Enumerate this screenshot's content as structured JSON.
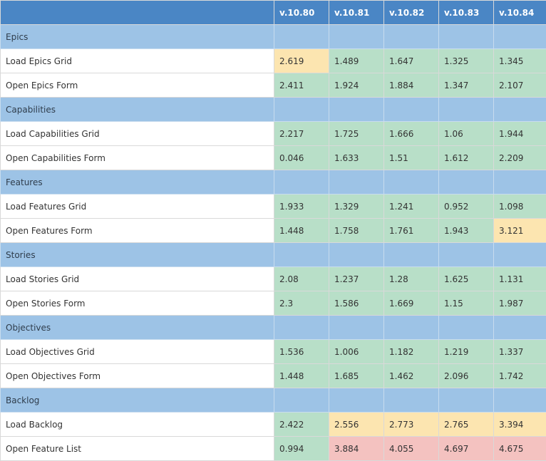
{
  "columns": [
    "v.10.80",
    "v.10.81",
    "v.10.82",
    "v.10.83",
    "v.10.84"
  ],
  "status_colors": {
    "green": "#b8dfc8",
    "yellow": "#fce5b0",
    "red": "#f4c2c0",
    "header": "#4a86c5",
    "group": "#9dc3e6"
  },
  "groups": [
    {
      "label": "Epics",
      "rows": [
        {
          "label": "Load Epics Grid",
          "values": [
            "2.619",
            "1.489",
            "1.647",
            "1.325",
            "1.345"
          ],
          "status": [
            "yellow",
            "green",
            "green",
            "green",
            "green"
          ]
        },
        {
          "label": "Open Epics Form",
          "values": [
            "2.411",
            "1.924",
            "1.884",
            "1.347",
            "2.107"
          ],
          "status": [
            "green",
            "green",
            "green",
            "green",
            "green"
          ]
        }
      ]
    },
    {
      "label": "Capabilities",
      "rows": [
        {
          "label": "Load Capabilities Grid",
          "values": [
            "2.217",
            "1.725",
            "1.666",
            "1.06",
            "1.944"
          ],
          "status": [
            "green",
            "green",
            "green",
            "green",
            "green"
          ]
        },
        {
          "label": "Open Capabilities Form",
          "values": [
            "0.046",
            "1.633",
            "1.51",
            "1.612",
            "2.209"
          ],
          "status": [
            "green",
            "green",
            "green",
            "green",
            "green"
          ]
        }
      ]
    },
    {
      "label": "Features",
      "rows": [
        {
          "label": "Load Features Grid",
          "values": [
            "1.933",
            "1.329",
            "1.241",
            "0.952",
            "1.098"
          ],
          "status": [
            "green",
            "green",
            "green",
            "green",
            "green"
          ]
        },
        {
          "label": "Open Features Form",
          "values": [
            "1.448",
            "1.758",
            "1.761",
            "1.943",
            "3.121"
          ],
          "status": [
            "green",
            "green",
            "green",
            "green",
            "yellow"
          ]
        }
      ]
    },
    {
      "label": "Stories",
      "rows": [
        {
          "label": "Load Stories Grid",
          "values": [
            "2.08",
            "1.237",
            "1.28",
            "1.625",
            "1.131"
          ],
          "status": [
            "green",
            "green",
            "green",
            "green",
            "green"
          ]
        },
        {
          "label": "Open Stories Form",
          "values": [
            "2.3",
            "1.586",
            "1.669",
            "1.15",
            "1.987"
          ],
          "status": [
            "green",
            "green",
            "green",
            "green",
            "green"
          ]
        }
      ]
    },
    {
      "label": "Objectives",
      "rows": [
        {
          "label": "Load Objectives Grid",
          "values": [
            "1.536",
            "1.006",
            "1.182",
            "1.219",
            "1.337"
          ],
          "status": [
            "green",
            "green",
            "green",
            "green",
            "green"
          ]
        },
        {
          "label": "Open Objectives Form",
          "values": [
            "1.448",
            "1.685",
            "1.462",
            "2.096",
            "1.742"
          ],
          "status": [
            "green",
            "green",
            "green",
            "green",
            "green"
          ]
        }
      ]
    },
    {
      "label": "Backlog",
      "rows": [
        {
          "label": "Load Backlog",
          "values": [
            "2.422",
            "2.556",
            "2.773",
            "2.765",
            "3.394"
          ],
          "status": [
            "green",
            "yellow",
            "yellow",
            "yellow",
            "yellow"
          ]
        },
        {
          "label": "Open Feature List",
          "values": [
            "0.994",
            "3.884",
            "4.055",
            "4.697",
            "4.675"
          ],
          "status": [
            "green",
            "red",
            "red",
            "red",
            "red"
          ]
        }
      ]
    }
  ]
}
